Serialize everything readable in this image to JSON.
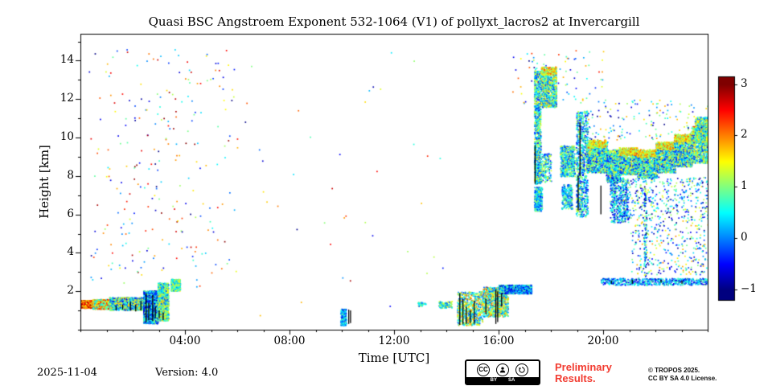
{
  "colors": {
    "preliminary_red": "#f23b30",
    "axis": "#000000",
    "background": "#ffffff"
  },
  "footer": {
    "date": "2025-11-04",
    "version": "Version: 4.0",
    "preliminary": [
      "Preliminary",
      "Results."
    ],
    "copyright": [
      "© TROPOS 2025.",
      "CC BY SA 4.0 License."
    ],
    "cc_badge": {
      "cc_text": "CC",
      "by_label": "BY",
      "sa_label": "SA"
    }
  },
  "chart_data": {
    "type": "heatmap",
    "title": "Quasi BSC Angstroem Exponent 532-1064 (V1) of pollyxt_lacros2 at Invercargill",
    "xlabel": "Time [UTC]",
    "ylabel": "Height [km]",
    "xlim_hours": [
      0,
      24
    ],
    "ylim_km": [
      0,
      15.4
    ],
    "grid": false,
    "x_major_ticks": [
      {
        "hour": 4,
        "label": "04:00"
      },
      {
        "hour": 8,
        "label": "08:00"
      },
      {
        "hour": 12,
        "label": "12:00"
      },
      {
        "hour": 16,
        "label": "16:00"
      },
      {
        "hour": 20,
        "label": "20:00"
      }
    ],
    "x_minor_every_hours": 1,
    "y_major_ticks": [
      {
        "km": 2,
        "label": "2"
      },
      {
        "km": 4,
        "label": "4"
      },
      {
        "km": 6,
        "label": "6"
      },
      {
        "km": 8,
        "label": "8"
      },
      {
        "km": 10,
        "label": "10"
      },
      {
        "km": 12,
        "label": "12"
      },
      {
        "km": 14,
        "label": "14"
      }
    ],
    "y_minor_every_km": 1,
    "colorbar": {
      "cmap": "jet",
      "vmin": -1,
      "vmax": 3,
      "ticks": [
        {
          "value": 3,
          "label": "3"
        },
        {
          "value": 2,
          "label": "2"
        },
        {
          "value": 1,
          "label": "1"
        },
        {
          "value": 0,
          "label": "0"
        },
        {
          "value": -1,
          "label": "−1"
        }
      ]
    },
    "features": [
      {
        "t0": 0.0,
        "t1": 0.45,
        "h0": 1.15,
        "h1": 1.55,
        "n": 700,
        "v0": 1.2,
        "v1": 3.0
      },
      {
        "t0": 0.45,
        "t1": 1.1,
        "h0": 1.1,
        "h1": 1.6,
        "n": 900,
        "v0": 0.3,
        "v1": 2.6
      },
      {
        "t0": 1.1,
        "t1": 2.4,
        "h0": 1.05,
        "h1": 1.7,
        "n": 1400,
        "v0": -0.6,
        "v1": 1.8
      },
      {
        "t0": 2.4,
        "t1": 2.95,
        "h0": 0.35,
        "h1": 2.05,
        "n": 1500,
        "v0": -0.9,
        "v1": 1.2
      },
      {
        "t0": 2.95,
        "t1": 3.35,
        "h0": 0.5,
        "h1": 2.45,
        "n": 1300,
        "v0": -0.2,
        "v1": 1.8
      },
      {
        "t0": 3.45,
        "t1": 3.8,
        "h0": 2.05,
        "h1": 2.65,
        "n": 450,
        "v0": 0.0,
        "v1": 1.6
      },
      {
        "t0": 0.3,
        "t1": 6.0,
        "h0": 2.2,
        "h1": 14.6,
        "n": 260,
        "v0": -1.0,
        "v1": 3.0
      },
      {
        "t0": 6.0,
        "t1": 14.0,
        "h0": 0.5,
        "h1": 14.5,
        "n": 40,
        "v0": -1.0,
        "v1": 3.0
      },
      {
        "t0": 16.5,
        "t1": 20.0,
        "h0": 11.8,
        "h1": 14.6,
        "n": 80,
        "v0": -1.0,
        "v1": 2.5
      },
      {
        "t0": 9.95,
        "t1": 10.15,
        "h0": 0.25,
        "h1": 1.1,
        "n": 260,
        "v0": -0.7,
        "v1": 1.0
      },
      {
        "t0": 12.9,
        "t1": 13.2,
        "h0": 1.25,
        "h1": 1.45,
        "n": 40,
        "v0": -0.3,
        "v1": 1.5
      },
      {
        "t0": 13.7,
        "t1": 14.2,
        "h0": 1.15,
        "h1": 1.5,
        "n": 110,
        "v0": -0.3,
        "v1": 1.5
      },
      {
        "t0": 14.4,
        "t1": 15.4,
        "h0": 0.25,
        "h1": 2.0,
        "n": 700,
        "v0": -0.3,
        "v1": 2.0
      },
      {
        "t0": 15.4,
        "t1": 16.35,
        "h0": 0.7,
        "h1": 2.25,
        "n": 900,
        "v0": -0.2,
        "v1": 2.2
      },
      {
        "t0": 16.0,
        "t1": 17.25,
        "h0": 1.9,
        "h1": 2.35,
        "n": 1100,
        "v0": -0.8,
        "v1": 1.0
      },
      {
        "t0": 17.35,
        "t1": 17.6,
        "h0": 7.6,
        "h1": 13.5,
        "n": 1000,
        "v0": -0.5,
        "v1": 1.6
      },
      {
        "t0": 17.6,
        "t1": 18.2,
        "h0": 11.6,
        "h1": 13.6,
        "n": 900,
        "v0": -0.3,
        "v1": 1.8
      },
      {
        "t0": 17.6,
        "t1": 18.2,
        "h0": 13.3,
        "h1": 13.7,
        "n": 150,
        "v0": 0.8,
        "v1": 2.2
      },
      {
        "t0": 17.6,
        "t1": 18.0,
        "h0": 7.7,
        "h1": 9.2,
        "n": 180,
        "v0": -0.5,
        "v1": 1.5
      },
      {
        "t0": 17.35,
        "t1": 17.65,
        "h0": 6.2,
        "h1": 7.45,
        "n": 330,
        "v0": -0.5,
        "v1": 1.2
      },
      {
        "t0": 18.35,
        "t1": 18.9,
        "h0": 8.0,
        "h1": 9.6,
        "n": 600,
        "v0": -0.4,
        "v1": 1.5
      },
      {
        "t0": 18.4,
        "t1": 18.8,
        "h0": 6.3,
        "h1": 7.6,
        "n": 260,
        "v0": -0.5,
        "v1": 1.2
      },
      {
        "t0": 18.95,
        "t1": 19.4,
        "h0": 5.9,
        "h1": 11.4,
        "n": 850,
        "v0": -0.6,
        "v1": 1.4
      },
      {
        "t0": 19.35,
        "t1": 20.15,
        "h0": 8.2,
        "h1": 9.8,
        "n": 1100,
        "v0": -0.5,
        "v1": 1.6
      },
      {
        "t0": 19.4,
        "t1": 20.1,
        "h0": 9.5,
        "h1": 9.9,
        "n": 260,
        "v0": 0.8,
        "v1": 2.2
      },
      {
        "t0": 20.1,
        "t1": 20.65,
        "h0": 7.7,
        "h1": 9.4,
        "n": 800,
        "v0": -0.5,
        "v1": 1.6
      },
      {
        "t0": 20.25,
        "t1": 20.95,
        "h0": 5.6,
        "h1": 7.9,
        "n": 450,
        "v0": -0.8,
        "v1": 1.2
      },
      {
        "t0": 20.6,
        "t1": 21.35,
        "h0": 8.1,
        "h1": 9.4,
        "n": 900,
        "v0": -0.5,
        "v1": 1.6
      },
      {
        "t0": 20.6,
        "t1": 21.3,
        "h0": 9.1,
        "h1": 9.5,
        "n": 220,
        "v0": 0.8,
        "v1": 2.2
      },
      {
        "t0": 21.3,
        "t1": 22.05,
        "h0": 7.9,
        "h1": 9.3,
        "n": 900,
        "v0": -0.5,
        "v1": 1.6
      },
      {
        "t0": 21.3,
        "t1": 22.0,
        "h0": 9.0,
        "h1": 9.4,
        "n": 200,
        "v0": 0.8,
        "v1": 2.2
      },
      {
        "t0": 22.0,
        "t1": 22.75,
        "h0": 8.2,
        "h1": 9.7,
        "n": 950,
        "v0": -0.5,
        "v1": 1.7
      },
      {
        "t0": 22.0,
        "t1": 22.7,
        "h0": 9.4,
        "h1": 9.8,
        "n": 220,
        "v0": 0.8,
        "v1": 2.2
      },
      {
        "t0": 22.7,
        "t1": 23.4,
        "h0": 8.5,
        "h1": 10.1,
        "n": 950,
        "v0": -0.5,
        "v1": 1.7
      },
      {
        "t0": 22.7,
        "t1": 23.4,
        "h0": 9.8,
        "h1": 10.2,
        "n": 220,
        "v0": 0.8,
        "v1": 2.2
      },
      {
        "t0": 23.35,
        "t1": 24.0,
        "h0": 8.7,
        "h1": 10.6,
        "n": 900,
        "v0": -0.4,
        "v1": 1.8
      },
      {
        "t0": 23.4,
        "t1": 24.0,
        "h0": 10.2,
        "h1": 10.6,
        "n": 200,
        "v0": 0.9,
        "v1": 2.4
      },
      {
        "t0": 23.5,
        "t1": 24.0,
        "h0": 9.8,
        "h1": 11.1,
        "n": 500,
        "v0": -0.2,
        "v1": 1.8
      },
      {
        "t0": 19.4,
        "t1": 24.0,
        "h0": 9.9,
        "h1": 12.0,
        "n": 140,
        "v0": -1.0,
        "v1": 2.0
      },
      {
        "t0": 20.3,
        "t1": 24.0,
        "h0": 5.8,
        "h1": 8.0,
        "n": 420,
        "v0": -1.0,
        "v1": 1.5
      },
      {
        "t0": 21.0,
        "t1": 24.0,
        "h0": 2.9,
        "h1": 5.8,
        "n": 300,
        "v0": -1.0,
        "v1": 2.0
      },
      {
        "t0": 19.9,
        "t1": 24.0,
        "h0": 2.35,
        "h1": 2.7,
        "n": 600,
        "v0": -0.8,
        "v1": 1.0
      },
      {
        "t0": 21.55,
        "t1": 21.65,
        "h0": 2.8,
        "h1": 7.6,
        "n": 120,
        "v0": -1.0,
        "v1": 1.5
      }
    ],
    "black_strokes": [
      {
        "t": 1.35,
        "h0": 1.0,
        "h1": 1.25
      },
      {
        "t": 1.6,
        "h0": 1.05,
        "h1": 1.3
      },
      {
        "t": 1.9,
        "h0": 1.0,
        "h1": 1.45
      },
      {
        "t": 2.1,
        "h0": 0.95,
        "h1": 1.3
      },
      {
        "t": 2.3,
        "h0": 1.0,
        "h1": 1.5
      },
      {
        "t": 2.5,
        "h0": 0.4,
        "h1": 1.9
      },
      {
        "t": 2.6,
        "h0": 0.5,
        "h1": 1.4
      },
      {
        "t": 2.75,
        "h0": 0.45,
        "h1": 1.8
      },
      {
        "t": 2.85,
        "h0": 0.6,
        "h1": 1.2
      },
      {
        "t": 3.0,
        "h0": 0.6,
        "h1": 1.0
      },
      {
        "t": 3.15,
        "h0": 0.5,
        "h1": 0.9
      },
      {
        "t": 10.25,
        "h0": 0.3,
        "h1": 1.05
      },
      {
        "t": 10.32,
        "h0": 0.35,
        "h1": 1.0
      },
      {
        "t": 14.5,
        "h0": 0.25,
        "h1": 1.9
      },
      {
        "t": 14.62,
        "h0": 0.3,
        "h1": 1.6
      },
      {
        "t": 14.75,
        "h0": 0.3,
        "h1": 1.2
      },
      {
        "t": 14.9,
        "h0": 0.35,
        "h1": 1.0
      },
      {
        "t": 15.05,
        "h0": 0.3,
        "h1": 1.5
      },
      {
        "t": 15.5,
        "h0": 0.8,
        "h1": 1.6
      },
      {
        "t": 15.88,
        "h0": 0.3,
        "h1": 2.1
      },
      {
        "t": 15.95,
        "h0": 0.4,
        "h1": 2.0
      },
      {
        "t": 16.1,
        "h0": 1.2,
        "h1": 1.9
      },
      {
        "t": 17.38,
        "h0": 7.6,
        "h1": 9.6
      },
      {
        "t": 19.03,
        "h0": 6.2,
        "h1": 8.0
      },
      {
        "t": 19.1,
        "h0": 8.0,
        "h1": 10.8
      },
      {
        "t": 19.9,
        "h0": 6.0,
        "h1": 7.5
      },
      {
        "t": 20.3,
        "h0": 2.4,
        "h1": 2.55
      },
      {
        "t": 21.1,
        "h0": 2.4,
        "h1": 2.6
      },
      {
        "t": 22.2,
        "h0": 2.45,
        "h1": 2.6
      },
      {
        "t": 23.0,
        "h0": 2.4,
        "h1": 2.55
      }
    ]
  }
}
